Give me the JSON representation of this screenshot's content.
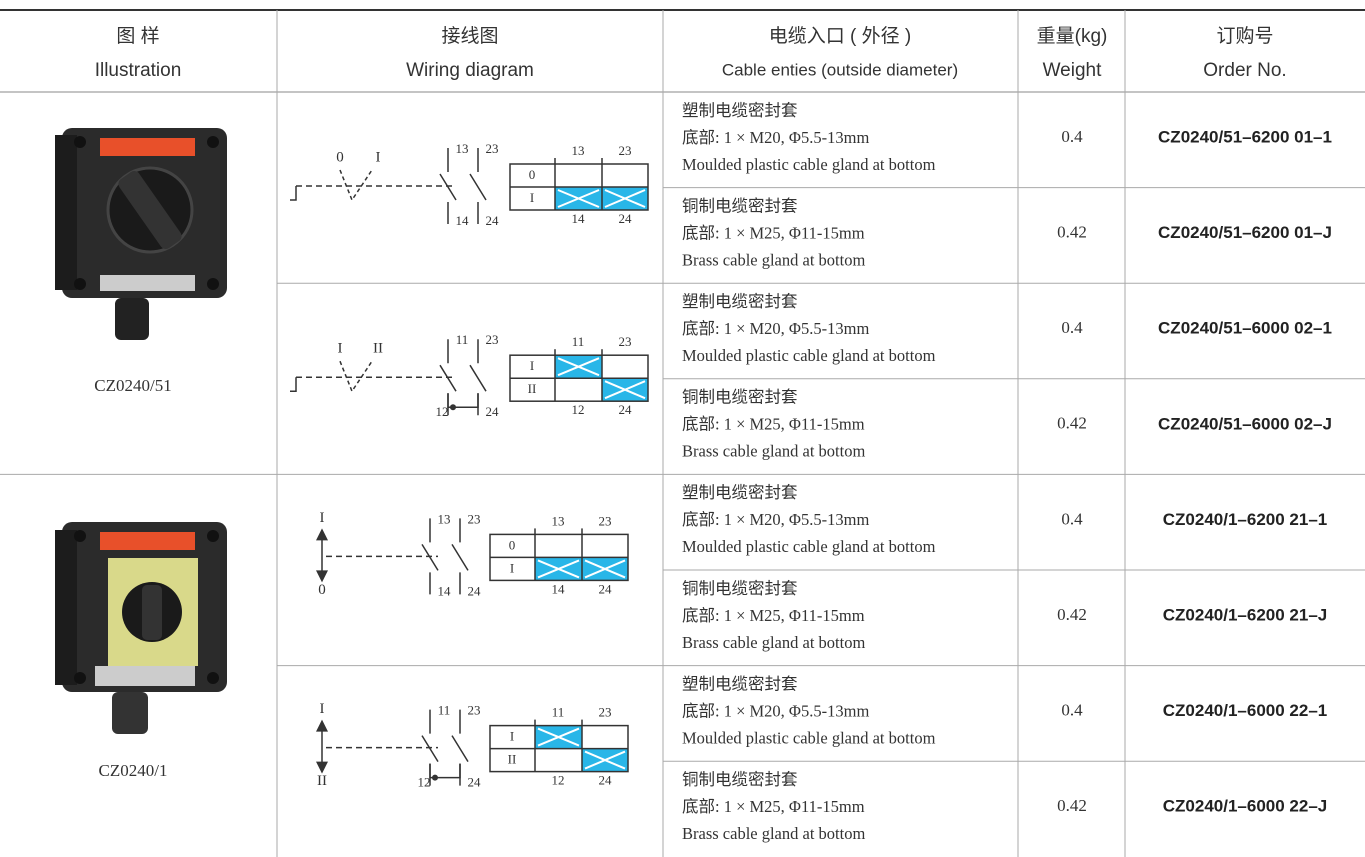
{
  "table": {
    "headers": [
      {
        "zh": "图 样",
        "en": "Illustration"
      },
      {
        "zh": "接线图",
        "en": "Wiring diagram"
      },
      {
        "zh": "电缆入口 ( 外径 )",
        "en": "Cable enties (outside diameter)"
      },
      {
        "zh": "重量(kg)",
        "en": "Weight"
      },
      {
        "zh": "订购号",
        "en": "Order No."
      }
    ],
    "products": [
      {
        "name": "CZ0240/51"
      },
      {
        "name": "CZ0240/1"
      }
    ],
    "diagrams": [
      {
        "positions": [
          "0",
          "I"
        ],
        "contacts": [
          "13",
          "23",
          "14",
          "24"
        ],
        "grid_rows": [
          "0",
          "I"
        ],
        "grid_top": [
          "13",
          "23"
        ],
        "grid_bottom": [
          "14",
          "24"
        ]
      },
      {
        "positions": [
          "I",
          "II"
        ],
        "contacts": [
          "11",
          "23",
          "12",
          "24"
        ],
        "grid_rows": [
          "I",
          "II"
        ],
        "grid_top": [
          "11",
          "23"
        ],
        "grid_bottom": [
          "12",
          "24"
        ]
      },
      {
        "positions": [
          "I",
          "0"
        ],
        "contacts": [
          "13",
          "23",
          "14",
          "24"
        ],
        "grid_rows": [
          "0",
          "I"
        ],
        "grid_top": [
          "13",
          "23"
        ],
        "grid_bottom": [
          "14",
          "24"
        ]
      },
      {
        "positions": [
          "I",
          "II"
        ],
        "contacts": [
          "11",
          "23",
          "12",
          "24"
        ],
        "grid_rows": [
          "I",
          "II"
        ],
        "grid_top": [
          "11",
          "23"
        ],
        "grid_bottom": [
          "12",
          "24"
        ]
      }
    ],
    "rows": [
      {
        "gland": [
          "塑制电缆密封套",
          "底部:  1 × M20,  Φ5.5-13mm",
          "Moulded plastic cable gland at bottom"
        ],
        "weight": "0.4",
        "order": "CZ0240/51–6200 01–1"
      },
      {
        "gland": [
          "铜制电缆密封套",
          "底部:  1 × M25,  Φ11-15mm",
          "Brass cable gland at bottom"
        ],
        "weight": "0.42",
        "order": "CZ0240/51–6200 01–J"
      },
      {
        "gland": [
          "塑制电缆密封套",
          "底部:  1 × M20,  Φ5.5-13mm",
          "Moulded plastic cable gland at bottom"
        ],
        "weight": "0.4",
        "order": "CZ0240/51–6000 02–1"
      },
      {
        "gland": [
          "铜制电缆密封套",
          "底部:  1 × M25,  Φ11-15mm",
          "Brass cable gland at bottom"
        ],
        "weight": "0.42",
        "order": "CZ0240/51–6000 02–J"
      },
      {
        "gland": [
          "塑制电缆密封套",
          "底部:  1 × M20,  Φ5.5-13mm",
          "Moulded plastic cable gland at bottom"
        ],
        "weight": "0.4",
        "order": "CZ0240/1–6200 21–1"
      },
      {
        "gland": [
          "铜制电缆密封套",
          "底部:  1 × M25,  Φ11-15mm",
          "Brass cable gland at bottom"
        ],
        "weight": "0.42",
        "order": "CZ0240/1–6200 21–J"
      },
      {
        "gland": [
          "塑制电缆密封套",
          "底部:  1 × M20,  Φ5.5-13mm",
          "Moulded plastic cable gland at bottom"
        ],
        "weight": "0.4",
        "order": "CZ0240/1–6000 22–1"
      },
      {
        "gland": [
          "铜制电缆密封套",
          "底部:  1 × M25,  Φ11-15mm",
          "Brass cable gland at bottom"
        ],
        "weight": "0.42",
        "order": "CZ0240/1–6000 22–J"
      }
    ]
  }
}
